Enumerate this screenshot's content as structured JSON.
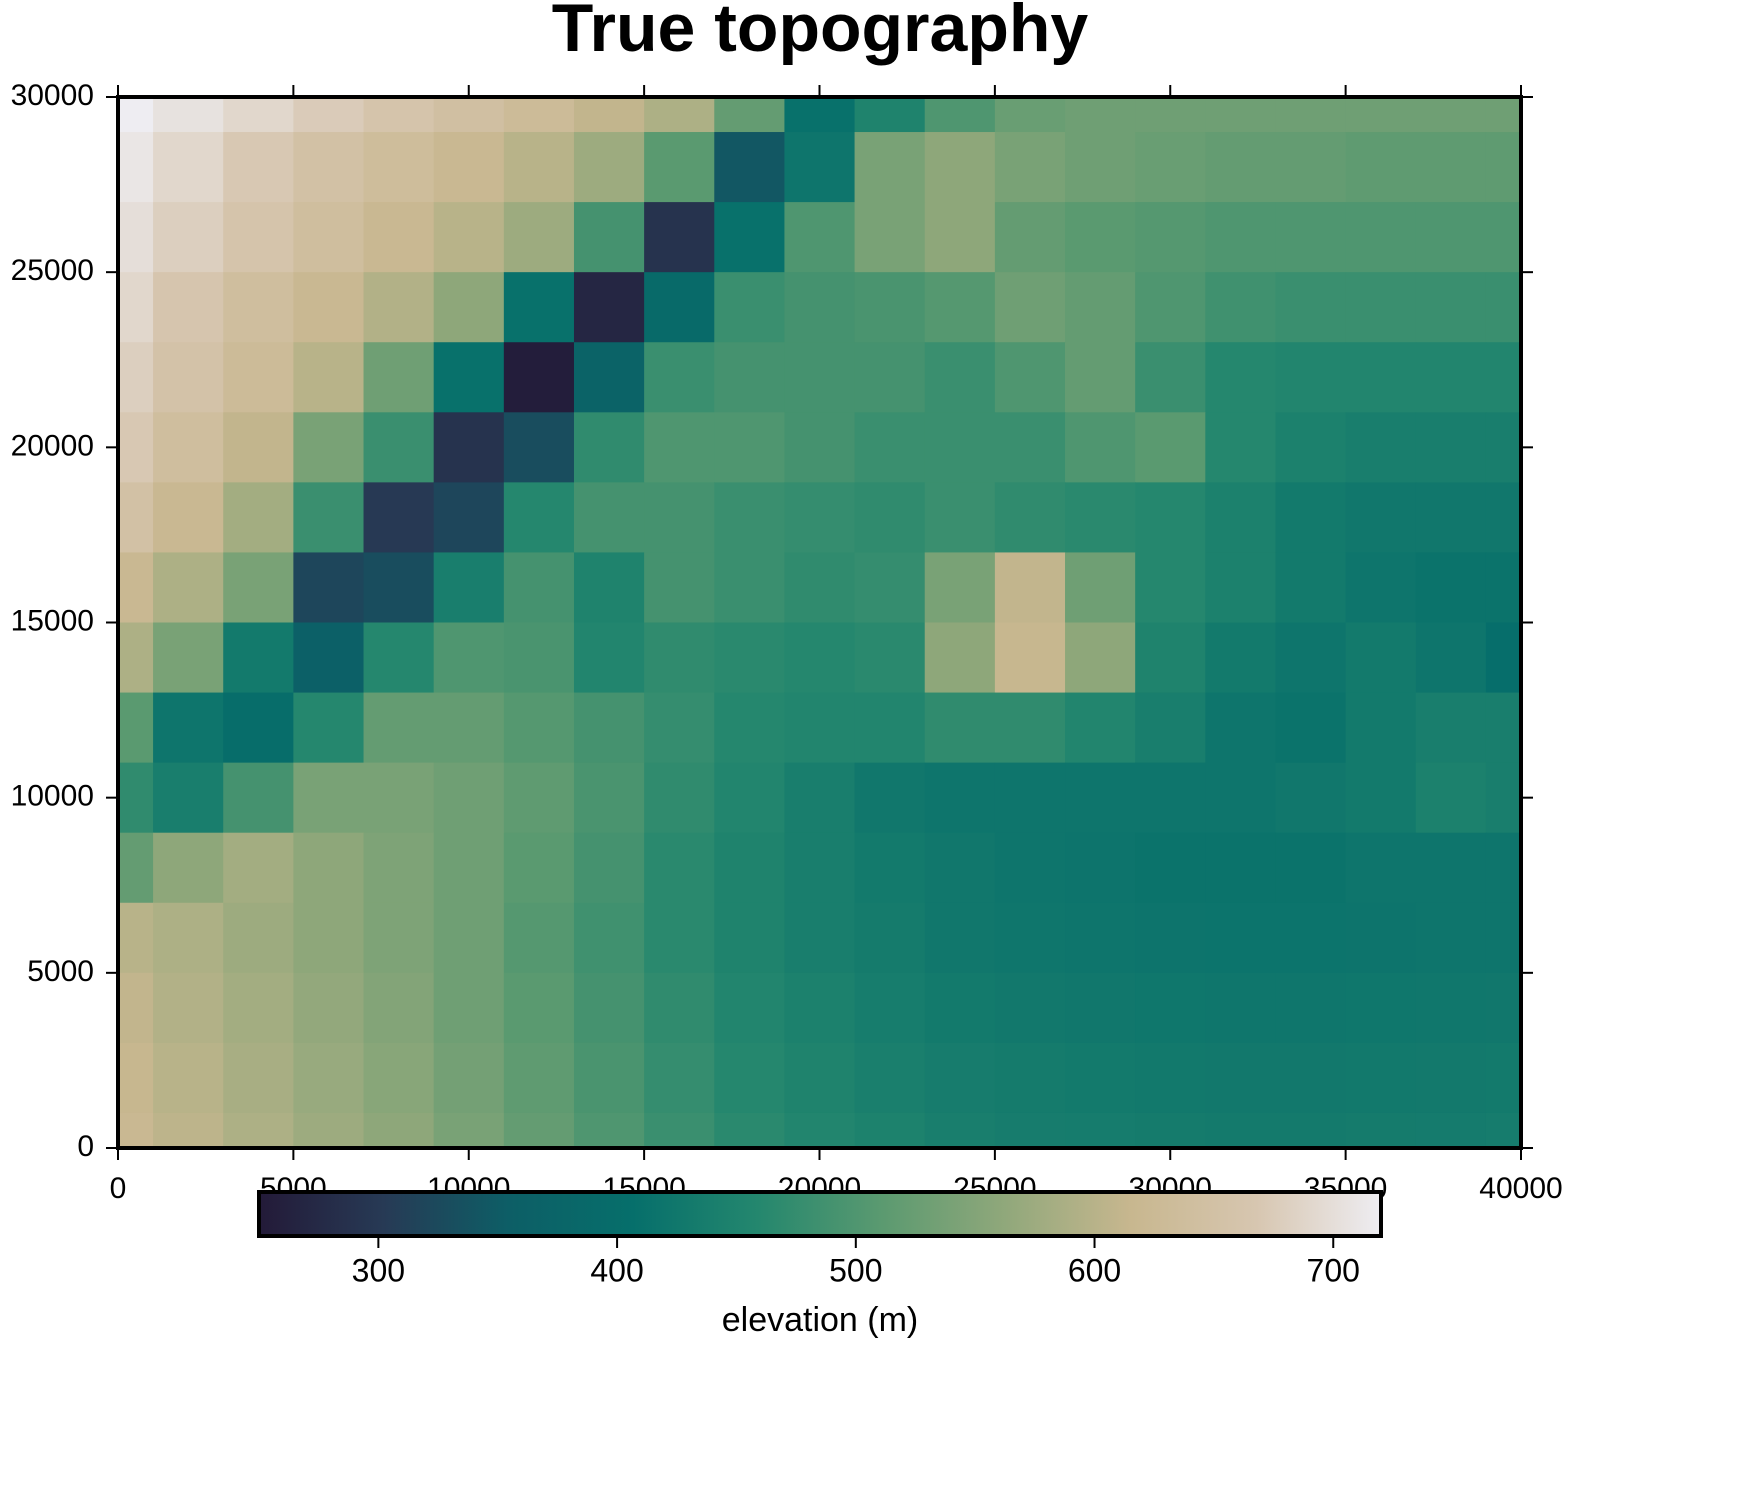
{
  "chart_data": {
    "type": "heatmap",
    "title": "True topography",
    "x": [
      0,
      2000,
      4000,
      6000,
      8000,
      10000,
      12000,
      14000,
      16000,
      18000,
      20000,
      22000,
      24000,
      26000,
      28000,
      30000,
      32000,
      34000,
      36000,
      38000,
      40000
    ],
    "y": [
      30000,
      28000,
      26000,
      24000,
      22000,
      20000,
      18000,
      16000,
      14000,
      12000,
      10000,
      8000,
      6000,
      4000,
      2000,
      0
    ],
    "z": [
      [
        720,
        705,
        690,
        675,
        660,
        645,
        630,
        610,
        590,
        520,
        410,
        450,
        500,
        525,
        530,
        530,
        530,
        530,
        530,
        530,
        530
      ],
      [
        710,
        690,
        670,
        650,
        635,
        620,
        600,
        575,
        510,
        345,
        420,
        540,
        560,
        540,
        530,
        525,
        520,
        520,
        515,
        515,
        515
      ],
      [
        700,
        680,
        660,
        640,
        620,
        600,
        575,
        490,
        290,
        410,
        500,
        540,
        560,
        520,
        510,
        505,
        500,
        500,
        500,
        500,
        500
      ],
      [
        690,
        665,
        640,
        620,
        595,
        560,
        410,
        270,
        390,
        480,
        490,
        495,
        505,
        530,
        520,
        500,
        485,
        480,
        480,
        480,
        480
      ],
      [
        680,
        655,
        630,
        600,
        530,
        410,
        255,
        370,
        480,
        490,
        490,
        490,
        480,
        500,
        520,
        480,
        460,
        455,
        455,
        455,
        455
      ],
      [
        670,
        640,
        610,
        540,
        480,
        290,
        330,
        470,
        500,
        500,
        490,
        480,
        480,
        480,
        500,
        510,
        460,
        445,
        440,
        440,
        440
      ],
      [
        650,
        620,
        580,
        480,
        300,
        320,
        460,
        490,
        490,
        480,
        475,
        470,
        480,
        470,
        465,
        460,
        445,
        430,
        425,
        425,
        425
      ],
      [
        620,
        590,
        540,
        320,
        330,
        440,
        490,
        450,
        490,
        480,
        470,
        475,
        540,
        610,
        530,
        460,
        445,
        430,
        420,
        415,
        415
      ],
      [
        590,
        540,
        430,
        360,
        460,
        500,
        495,
        455,
        470,
        465,
        460,
        465,
        560,
        615,
        560,
        450,
        430,
        420,
        430,
        420,
        405
      ],
      [
        510,
        420,
        400,
        460,
        520,
        520,
        505,
        490,
        475,
        460,
        455,
        455,
        470,
        470,
        455,
        440,
        420,
        415,
        430,
        440,
        440
      ],
      [
        470,
        440,
        490,
        540,
        540,
        530,
        515,
        495,
        470,
        455,
        440,
        425,
        420,
        420,
        420,
        420,
        420,
        425,
        430,
        445,
        440
      ],
      [
        520,
        560,
        580,
        560,
        545,
        530,
        510,
        490,
        465,
        450,
        440,
        430,
        425,
        420,
        418,
        415,
        415,
        415,
        420,
        420,
        420
      ],
      [
        600,
        590,
        575,
        560,
        545,
        530,
        505,
        485,
        465,
        450,
        440,
        432,
        425,
        422,
        420,
        418,
        417,
        417,
        418,
        420,
        420
      ],
      [
        610,
        595,
        580,
        565,
        550,
        530,
        510,
        490,
        470,
        455,
        445,
        437,
        430,
        427,
        425,
        423,
        422,
        422,
        423,
        424,
        425
      ],
      [
        615,
        600,
        585,
        570,
        555,
        535,
        515,
        495,
        475,
        460,
        450,
        442,
        436,
        432,
        430,
        428,
        427,
        427,
        428,
        429,
        430
      ],
      [
        620,
        605,
        590,
        575,
        560,
        540,
        520,
        500,
        480,
        465,
        455,
        447,
        440,
        436,
        434,
        432,
        431,
        431,
        432,
        433,
        434
      ]
    ],
    "xlim": [
      0,
      40000
    ],
    "ylim": [
      0,
      30000
    ],
    "xticks": [
      0,
      5000,
      10000,
      15000,
      20000,
      25000,
      30000,
      35000,
      40000
    ],
    "yticks": [
      0,
      5000,
      10000,
      15000,
      20000,
      25000,
      30000
    ],
    "clim": [
      250,
      720
    ],
    "cticks": [
      300,
      400,
      500,
      600,
      700
    ],
    "colors": [
      "#231a38",
      "#273a55",
      "#0d5e66",
      "#066f6b",
      "#24876e",
      "#5b9a70",
      "#91a87b",
      "#c8b78f",
      "#d7c6b0",
      "#eeedf2"
    ],
    "colorbar_label": "elevation (m)"
  }
}
